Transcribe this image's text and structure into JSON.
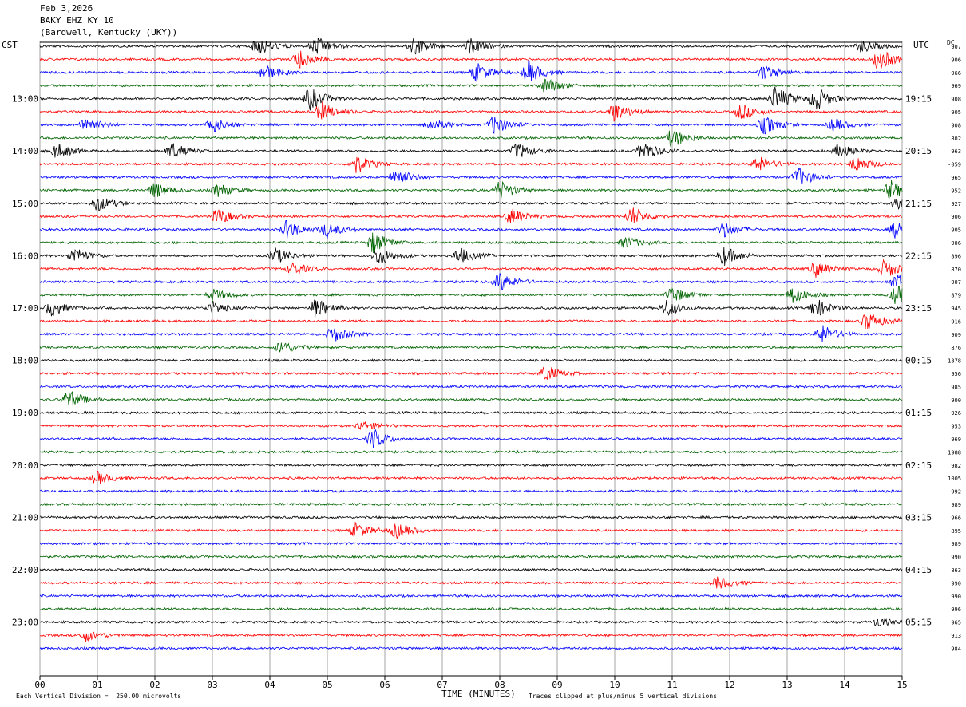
{
  "header": {
    "date": "Feb 3,2026",
    "station": "BAKY EHZ KY 10",
    "location": "(Bardwell, Kentucky (UKY))"
  },
  "left_timezone": "CST",
  "right_timezone": "UTC",
  "dc_label": "DC",
  "footer": {
    "scale_note": "Each Vertical Division =  250.00 microvolts",
    "clip_note": "Traces clipped at plus/minus 5 vertical divisions"
  },
  "chart_data": {
    "type": "line",
    "chart_kind": "helicorder",
    "xlabel": "TIME (MINUTES)",
    "x_ticks": [
      "00",
      "01",
      "02",
      "03",
      "04",
      "05",
      "06",
      "07",
      "08",
      "09",
      "10",
      "11",
      "12",
      "13",
      "14",
      "15"
    ],
    "xlim": [
      0,
      15
    ],
    "trace_minutes": 15,
    "trace_colors": [
      "#000000",
      "#ff0000",
      "#0000ff",
      "#006400"
    ],
    "left_hour_labels": [
      "13:00",
      "14:00",
      "15:00",
      "16:00",
      "17:00",
      "18:00",
      "19:00",
      "20:00",
      "21:00",
      "22:00",
      "23:00"
    ],
    "right_hour_labels": [
      "19:15",
      "20:15",
      "21:15",
      "22:15",
      "23:15",
      "00:15",
      "01:15",
      "02:15",
      "03:15",
      "04:15",
      "05:15"
    ],
    "dc_offsets": [
      "907",
      "906",
      "966",
      "969",
      "908",
      "905",
      "908",
      "802",
      "963",
      "-059",
      "965",
      "952",
      "927",
      "906",
      "905",
      "906",
      "896",
      "870",
      "907",
      "879",
      "945",
      "916",
      "909",
      "876",
      "1378",
      "956",
      "985",
      "900",
      "926",
      "953",
      "969",
      "1988",
      "982",
      "1005",
      "992",
      "989",
      "966",
      "895",
      "989",
      "990",
      "863",
      "990",
      "990",
      "996",
      "965",
      "913",
      "984"
    ],
    "events": [
      {
        "trace": 0,
        "minute": 3.8,
        "amp": 3
      },
      {
        "trace": 0,
        "minute": 4.8,
        "amp": 3
      },
      {
        "trace": 0,
        "minute": 6.5,
        "amp": 3
      },
      {
        "trace": 0,
        "minute": 7.5,
        "amp": 2.5
      },
      {
        "trace": 0,
        "minute": 14.3,
        "amp": 2
      },
      {
        "trace": 1,
        "minute": 4.5,
        "amp": 3
      },
      {
        "trace": 1,
        "minute": 14.6,
        "amp": 3.5
      },
      {
        "trace": 2,
        "minute": 3.9,
        "amp": 2.5
      },
      {
        "trace": 2,
        "minute": 7.6,
        "amp": 3
      },
      {
        "trace": 2,
        "minute": 8.5,
        "amp": 3.5
      },
      {
        "trace": 2,
        "minute": 12.6,
        "amp": 2.5
      },
      {
        "trace": 3,
        "minute": 8.8,
        "amp": 2.5
      },
      {
        "trace": 4,
        "minute": 4.7,
        "amp": 3.5
      },
      {
        "trace": 4,
        "minute": 12.8,
        "amp": 4
      },
      {
        "trace": 4,
        "minute": 13.5,
        "amp": 4
      },
      {
        "trace": 5,
        "minute": 4.9,
        "amp": 3
      },
      {
        "trace": 5,
        "minute": 10.0,
        "amp": 3
      },
      {
        "trace": 5,
        "minute": 12.2,
        "amp": 2.5
      },
      {
        "trace": 6,
        "minute": 0.8,
        "amp": 2.5
      },
      {
        "trace": 6,
        "minute": 3.0,
        "amp": 2.5
      },
      {
        "trace": 6,
        "minute": 6.8,
        "amp": 2
      },
      {
        "trace": 6,
        "minute": 7.9,
        "amp": 3
      },
      {
        "trace": 6,
        "minute": 12.6,
        "amp": 3
      },
      {
        "trace": 6,
        "minute": 13.8,
        "amp": 2
      },
      {
        "trace": 7,
        "minute": 11.0,
        "amp": 3
      },
      {
        "trace": 8,
        "minute": 0.3,
        "amp": 2.5
      },
      {
        "trace": 8,
        "minute": 2.3,
        "amp": 2.5
      },
      {
        "trace": 8,
        "minute": 8.3,
        "amp": 2.5
      },
      {
        "trace": 8,
        "minute": 10.5,
        "amp": 3
      },
      {
        "trace": 8,
        "minute": 13.9,
        "amp": 2
      },
      {
        "trace": 9,
        "minute": 5.5,
        "amp": 3
      },
      {
        "trace": 9,
        "minute": 12.5,
        "amp": 2.5
      },
      {
        "trace": 9,
        "minute": 14.2,
        "amp": 2.5
      },
      {
        "trace": 10,
        "minute": 6.2,
        "amp": 3
      },
      {
        "trace": 10,
        "minute": 13.2,
        "amp": 3
      },
      {
        "trace": 11,
        "minute": 2.0,
        "amp": 2.5
      },
      {
        "trace": 11,
        "minute": 3.1,
        "amp": 2
      },
      {
        "trace": 11,
        "minute": 8.0,
        "amp": 3
      },
      {
        "trace": 11,
        "minute": 14.8,
        "amp": 3
      },
      {
        "trace": 12,
        "minute": 1.0,
        "amp": 2.5
      },
      {
        "trace": 12,
        "minute": 14.9,
        "amp": 2.5
      },
      {
        "trace": 13,
        "minute": 3.1,
        "amp": 2.5
      },
      {
        "trace": 13,
        "minute": 8.2,
        "amp": 2.5
      },
      {
        "trace": 13,
        "minute": 10.3,
        "amp": 3
      },
      {
        "trace": 14,
        "minute": 4.3,
        "amp": 3
      },
      {
        "trace": 14,
        "minute": 5.0,
        "amp": 2.5
      },
      {
        "trace": 14,
        "minute": 11.9,
        "amp": 2.5
      },
      {
        "trace": 14,
        "minute": 14.9,
        "amp": 3
      },
      {
        "trace": 15,
        "minute": 5.8,
        "amp": 3.5
      },
      {
        "trace": 15,
        "minute": 10.2,
        "amp": 2
      },
      {
        "trace": 16,
        "minute": 0.6,
        "amp": 2.5
      },
      {
        "trace": 16,
        "minute": 4.1,
        "amp": 2.5
      },
      {
        "trace": 16,
        "minute": 5.9,
        "amp": 3
      },
      {
        "trace": 16,
        "minute": 7.3,
        "amp": 2.5
      },
      {
        "trace": 16,
        "minute": 11.9,
        "amp": 3
      },
      {
        "trace": 17,
        "minute": 4.4,
        "amp": 2
      },
      {
        "trace": 17,
        "minute": 13.5,
        "amp": 2.5
      },
      {
        "trace": 17,
        "minute": 14.7,
        "amp": 3
      },
      {
        "trace": 18,
        "minute": 8.0,
        "amp": 3
      },
      {
        "trace": 18,
        "minute": 14.9,
        "amp": 2.5
      },
      {
        "trace": 19,
        "minute": 3.0,
        "amp": 2
      },
      {
        "trace": 19,
        "minute": 11.0,
        "amp": 2.5
      },
      {
        "trace": 19,
        "minute": 13.1,
        "amp": 2.5
      },
      {
        "trace": 19,
        "minute": 14.9,
        "amp": 3
      },
      {
        "trace": 20,
        "minute": 0.2,
        "amp": 2.5
      },
      {
        "trace": 20,
        "minute": 3.0,
        "amp": 2
      },
      {
        "trace": 20,
        "minute": 4.8,
        "amp": 3
      },
      {
        "trace": 20,
        "minute": 10.9,
        "amp": 2.5
      },
      {
        "trace": 20,
        "minute": 13.5,
        "amp": 3
      },
      {
        "trace": 21,
        "minute": 14.4,
        "amp": 3
      },
      {
        "trace": 22,
        "minute": 5.1,
        "amp": 2.5
      },
      {
        "trace": 22,
        "minute": 13.6,
        "amp": 3
      },
      {
        "trace": 23,
        "minute": 4.2,
        "amp": 2
      },
      {
        "trace": 25,
        "minute": 8.8,
        "amp": 2.5
      },
      {
        "trace": 27,
        "minute": 0.5,
        "amp": 3
      },
      {
        "trace": 29,
        "minute": 5.6,
        "amp": 1.5
      },
      {
        "trace": 30,
        "minute": 5.8,
        "amp": 3
      },
      {
        "trace": 33,
        "minute": 1.0,
        "amp": 2
      },
      {
        "trace": 37,
        "minute": 5.5,
        "amp": 2.5
      },
      {
        "trace": 37,
        "minute": 6.2,
        "amp": 2.5
      },
      {
        "trace": 41,
        "minute": 11.8,
        "amp": 2
      },
      {
        "trace": 44,
        "minute": 14.6,
        "amp": 1.5
      },
      {
        "trace": 45,
        "minute": 0.8,
        "amp": 1.8
      }
    ]
  }
}
